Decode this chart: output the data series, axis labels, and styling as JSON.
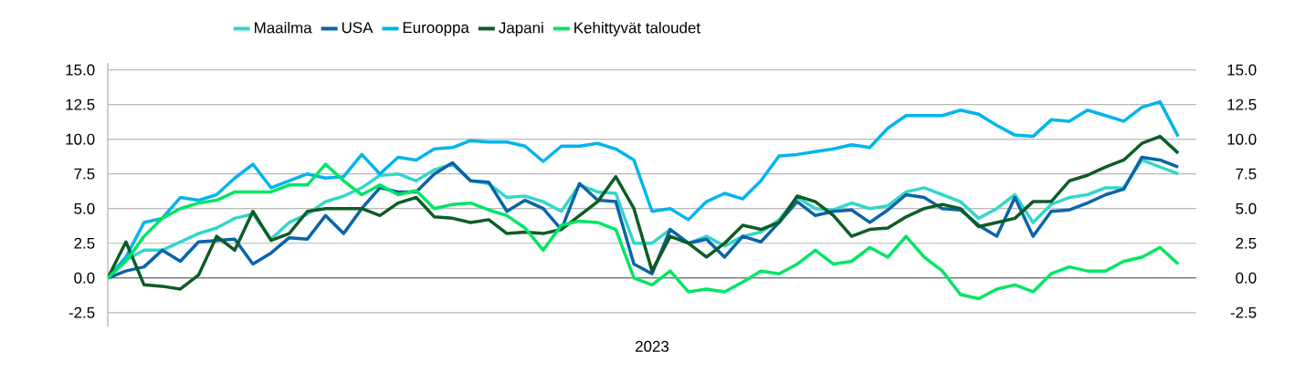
{
  "chart_data": {
    "type": "line",
    "xlabel": "2023",
    "categories": [
      null,
      null,
      null,
      null,
      null,
      null,
      null,
      null,
      null,
      null,
      null,
      null,
      null,
      null,
      null,
      null,
      null,
      null,
      null,
      null,
      null,
      null,
      null,
      null,
      null,
      null,
      null,
      null,
      null,
      null,
      null,
      null,
      null,
      null,
      null,
      null,
      null,
      null,
      null,
      null,
      null,
      null,
      null,
      null,
      null,
      null,
      null,
      null,
      null,
      null,
      null,
      null,
      null,
      null,
      null,
      null,
      null,
      null,
      null,
      null
    ],
    "series": [
      {
        "name": "Maailma",
        "color": "#33d6cc",
        "values": [
          0,
          1.3,
          2.0,
          2.0,
          2.6,
          3.2,
          3.6,
          4.3,
          4.6,
          2.8,
          4.0,
          4.6,
          5.5,
          5.9,
          6.5,
          7.4,
          7.5,
          7.0,
          7.8,
          8.2,
          7.0,
          6.8,
          5.8,
          5.9,
          5.5,
          4.8,
          6.7,
          6.2,
          6.1,
          2.5,
          2.5,
          3.5,
          2.5,
          3.0,
          2.3,
          3.0,
          3.3,
          4.2,
          5.8,
          5.0,
          4.9,
          5.4,
          5.0,
          5.2,
          6.2,
          6.5,
          6.0,
          5.5,
          4.3,
          5.0,
          6.0,
          4.0,
          5.3,
          5.8,
          6.0,
          6.5,
          6.5,
          8.5,
          8.0,
          7.5
        ]
      },
      {
        "name": "USA",
        "color": "#0a64a8",
        "values": [
          0,
          0.5,
          0.8,
          2.0,
          1.2,
          2.6,
          2.7,
          2.8,
          1.0,
          1.8,
          2.9,
          2.8,
          4.5,
          3.2,
          5.0,
          6.5,
          6.2,
          6.2,
          7.5,
          8.3,
          7.0,
          6.9,
          4.8,
          5.6,
          5.0,
          3.5,
          6.8,
          5.6,
          5.5,
          1.0,
          0.3,
          3.5,
          2.5,
          2.8,
          1.5,
          3.0,
          2.6,
          4.0,
          5.5,
          4.5,
          4.8,
          4.9,
          4.0,
          4.9,
          6.0,
          5.8,
          5.0,
          4.9,
          3.8,
          3.0,
          5.8,
          3.0,
          4.8,
          4.9,
          5.4,
          6.0,
          6.4,
          8.7,
          8.5,
          8.0
        ]
      },
      {
        "name": "Eurooppa",
        "color": "#00b4ee",
        "values": [
          0,
          1.5,
          4.0,
          4.3,
          5.8,
          5.6,
          6.0,
          7.2,
          8.2,
          6.5,
          7.0,
          7.5,
          7.2,
          7.3,
          8.9,
          7.5,
          8.7,
          8.5,
          9.3,
          9.4,
          9.9,
          9.8,
          9.8,
          9.5,
          8.4,
          9.5,
          9.5,
          9.7,
          9.3,
          8.5,
          4.8,
          5.0,
          4.2,
          5.5,
          6.1,
          5.7,
          7.0,
          8.8,
          8.9,
          9.1,
          9.3,
          9.6,
          9.4,
          10.8,
          11.7,
          11.7,
          11.7,
          12.1,
          11.8,
          11.0,
          10.3,
          10.2,
          11.4,
          11.3,
          12.1,
          11.7,
          11.3,
          12.3,
          12.7,
          10.2
        ]
      },
      {
        "name": "Japani",
        "color": "#0d5c26",
        "values": [
          0,
          2.6,
          -0.5,
          -0.6,
          -0.8,
          0.2,
          3.0,
          2.0,
          4.8,
          2.7,
          3.2,
          4.8,
          5.0,
          5.0,
          5.0,
          4.5,
          5.4,
          5.8,
          4.4,
          4.3,
          4.0,
          4.2,
          3.2,
          3.3,
          3.2,
          3.5,
          4.5,
          5.5,
          7.3,
          5.0,
          0.5,
          3.0,
          2.5,
          1.5,
          2.5,
          3.8,
          3.5,
          4.0,
          5.9,
          5.5,
          4.5,
          3.0,
          3.5,
          3.6,
          4.4,
          5.0,
          5.3,
          5.0,
          3.7,
          4.0,
          4.3,
          5.5,
          5.5,
          7.0,
          7.4,
          8.0,
          8.5,
          9.7,
          10.2,
          9.0
        ]
      },
      {
        "name": "Kehittyvät taloudet",
        "color": "#00e664",
        "values": [
          0,
          1.2,
          3.0,
          4.3,
          5.0,
          5.4,
          5.6,
          6.2,
          6.2,
          6.2,
          6.7,
          6.7,
          8.2,
          7.0,
          6.0,
          6.7,
          6.0,
          6.3,
          5.0,
          5.3,
          5.4,
          4.9,
          4.5,
          3.6,
          2.0,
          3.8,
          4.1,
          4.0,
          3.5,
          0.0,
          -0.5,
          0.5,
          -1.0,
          -0.8,
          -1.0,
          -0.3,
          0.5,
          0.3,
          1.0,
          2.0,
          1.0,
          1.2,
          2.2,
          1.5,
          3.0,
          1.5,
          0.5,
          -1.2,
          -1.5,
          -0.8,
          -0.5,
          -1.0,
          0.3,
          0.8,
          0.5,
          0.5,
          1.2,
          1.5,
          2.2,
          1.0
        ]
      }
    ],
    "ylim": [
      -3.5,
      15.5
    ],
    "yticks": [
      {
        "value": -2.5,
        "label": "-2.5"
      },
      {
        "value": 0,
        "label": "0.0"
      },
      {
        "value": 2.5,
        "label": "2.5"
      },
      {
        "value": 5,
        "label": "5.0"
      },
      {
        "value": 7.5,
        "label": "7.5"
      },
      {
        "value": 10,
        "label": "10.0"
      },
      {
        "value": 12.5,
        "label": "12.5"
      },
      {
        "value": 15,
        "label": "15.0"
      }
    ],
    "y2lim": [
      -3.5,
      15.5
    ],
    "y2ticks": [
      {
        "value": -2.5,
        "label": "-2.5"
      },
      {
        "value": 0,
        "label": "0.0"
      },
      {
        "value": 2.5,
        "label": "2.5"
      },
      {
        "value": 5,
        "label": "5.0"
      },
      {
        "value": 7.5,
        "label": "7.5"
      },
      {
        "value": 10,
        "label": "10.0"
      },
      {
        "value": 12.5,
        "label": "12.5"
      },
      {
        "value": 15,
        "label": "15.0"
      }
    ],
    "grid": "y",
    "legend": "top",
    "marker": "none",
    "line_style": "solid"
  }
}
